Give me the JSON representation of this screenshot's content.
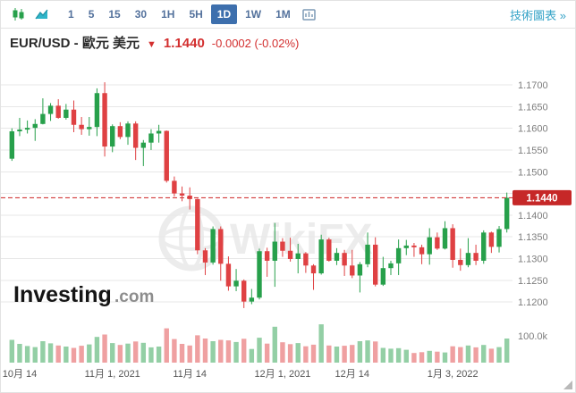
{
  "toolbar": {
    "timeframes": [
      "1",
      "5",
      "15",
      "30",
      "1H",
      "5H",
      "1D",
      "1W",
      "1M"
    ],
    "selected_timeframe": "1D",
    "tech_chart_link": "技術圖表 »",
    "icons": [
      "candlestick-chart-icon",
      "area-chart-icon",
      "indicators-icon"
    ]
  },
  "header": {
    "symbol_title": "EUR/USD - 歐元 美元",
    "direction_arrow": "▼",
    "price": "1.1440",
    "change": "-0.0002 (-0.02%)"
  },
  "watermark": {
    "text": "WikiFX"
  },
  "logo": {
    "brand": "Investing",
    "suffix": ".com"
  },
  "chart_data": {
    "type": "candlestick",
    "symbol": "EUR/USD",
    "interval": "1D",
    "title": "EUR/USD - 歐元 美元",
    "ylim": [
      1.1155,
      1.1735
    ],
    "grid": true,
    "legend": "none",
    "y_axis_ticks": [
      "1.1700",
      "1.1650",
      "1.1600",
      "1.1550",
      "1.1500",
      "1.1450",
      "1.1400",
      "1.1350",
      "1.1300",
      "1.1250",
      "1.1200"
    ],
    "price_line": {
      "value": 1.144,
      "label": "1.1440"
    },
    "volume_axis": {
      "label": "100.0k",
      "value": 100
    },
    "x_axis_labels": [
      {
        "text": "10月 14",
        "index": 1
      },
      {
        "text": "11月 1, 2021",
        "index": 13
      },
      {
        "text": "11月 14",
        "index": 23
      },
      {
        "text": "12月 1, 2021",
        "index": 35
      },
      {
        "text": "12月 14",
        "index": 44
      },
      {
        "text": "1月 3, 2022",
        "index": 57
      }
    ],
    "columns": [
      "open",
      "high",
      "low",
      "close",
      "volume_k"
    ],
    "candles": [
      [
        1.153,
        1.16,
        1.1525,
        1.1593,
        85
      ],
      [
        1.1593,
        1.1624,
        1.1582,
        1.1597,
        70
      ],
      [
        1.1597,
        1.1618,
        1.1588,
        1.1601,
        62
      ],
      [
        1.1601,
        1.1621,
        1.1571,
        1.161,
        58
      ],
      [
        1.161,
        1.1669,
        1.1609,
        1.1633,
        80
      ],
      [
        1.1633,
        1.1658,
        1.1617,
        1.1652,
        72
      ],
      [
        1.1652,
        1.1667,
        1.1622,
        1.1624,
        64
      ],
      [
        1.1624,
        1.1656,
        1.162,
        1.1643,
        60
      ],
      [
        1.1643,
        1.1664,
        1.1591,
        1.1608,
        55
      ],
      [
        1.1608,
        1.1626,
        1.1585,
        1.1598,
        63
      ],
      [
        1.1598,
        1.1626,
        1.1583,
        1.1603,
        68
      ],
      [
        1.1603,
        1.1692,
        1.1582,
        1.1681,
        96
      ],
      [
        1.1681,
        1.1706,
        1.1535,
        1.1558,
        105
      ],
      [
        1.1558,
        1.1609,
        1.1545,
        1.1605,
        73
      ],
      [
        1.1605,
        1.1614,
        1.1575,
        1.158,
        66
      ],
      [
        1.158,
        1.1616,
        1.1562,
        1.1611,
        71
      ],
      [
        1.1611,
        1.1616,
        1.1527,
        1.1555,
        79
      ],
      [
        1.1555,
        1.1573,
        1.1513,
        1.1567,
        74
      ],
      [
        1.1567,
        1.1598,
        1.155,
        1.1588,
        57
      ],
      [
        1.1588,
        1.1608,
        1.1567,
        1.1594,
        60
      ],
      [
        1.1594,
        1.1595,
        1.1475,
        1.1479,
        128
      ],
      [
        1.1479,
        1.1489,
        1.1443,
        1.145,
        88
      ],
      [
        1.145,
        1.1466,
        1.1432,
        1.1445,
        70
      ],
      [
        1.1445,
        1.1464,
        1.1413,
        1.1437,
        64
      ],
      [
        1.1437,
        1.1438,
        1.131,
        1.1319,
        102
      ],
      [
        1.1319,
        1.1324,
        1.1262,
        1.1291,
        90
      ],
      [
        1.1291,
        1.1374,
        1.1286,
        1.1368,
        80
      ],
      [
        1.1368,
        1.1374,
        1.1249,
        1.1288,
        85
      ],
      [
        1.1288,
        1.1305,
        1.1226,
        1.1236,
        83
      ],
      [
        1.1236,
        1.1276,
        1.1225,
        1.1249,
        77
      ],
      [
        1.1249,
        1.1252,
        1.1186,
        1.1201,
        89
      ],
      [
        1.1201,
        1.123,
        1.1195,
        1.121,
        51
      ],
      [
        1.121,
        1.1323,
        1.1206,
        1.1317,
        93
      ],
      [
        1.1317,
        1.1325,
        1.1258,
        1.1295,
        71
      ],
      [
        1.1295,
        1.1382,
        1.1235,
        1.1339,
        134
      ],
      [
        1.1339,
        1.1347,
        1.1304,
        1.1318,
        76
      ],
      [
        1.1318,
        1.1348,
        1.1293,
        1.1299,
        69
      ],
      [
        1.1299,
        1.1334,
        1.1266,
        1.1312,
        73
      ],
      [
        1.1312,
        1.1315,
        1.1267,
        1.1284,
        61
      ],
      [
        1.1284,
        1.1287,
        1.1228,
        1.1266,
        67
      ],
      [
        1.1266,
        1.1355,
        1.1263,
        1.1344,
        143
      ],
      [
        1.1344,
        1.1348,
        1.1293,
        1.1295,
        64
      ],
      [
        1.1295,
        1.1324,
        1.1285,
        1.1313,
        60
      ],
      [
        1.1313,
        1.132,
        1.126,
        1.1284,
        63
      ],
      [
        1.1284,
        1.132,
        1.1255,
        1.1261,
        66
      ],
      [
        1.1261,
        1.1292,
        1.1222,
        1.1287,
        80
      ],
      [
        1.1287,
        1.136,
        1.128,
        1.1332,
        83
      ],
      [
        1.1332,
        1.1349,
        1.1236,
        1.124,
        79
      ],
      [
        1.124,
        1.1304,
        1.1237,
        1.1278,
        55
      ],
      [
        1.1278,
        1.1295,
        1.1262,
        1.1289,
        52
      ],
      [
        1.1289,
        1.1344,
        1.1262,
        1.1324,
        54
      ],
      [
        1.1324,
        1.1343,
        1.1308,
        1.133,
        48
      ],
      [
        1.133,
        1.1336,
        1.1304,
        1.1326,
        36
      ],
      [
        1.1326,
        1.1332,
        1.1287,
        1.131,
        39
      ],
      [
        1.131,
        1.137,
        1.1286,
        1.1349,
        44
      ],
      [
        1.1349,
        1.136,
        1.132,
        1.1323,
        41
      ],
      [
        1.1323,
        1.1386,
        1.1321,
        1.137,
        38
      ],
      [
        1.137,
        1.1379,
        1.1279,
        1.1297,
        61
      ],
      [
        1.1297,
        1.1323,
        1.1272,
        1.1285,
        58
      ],
      [
        1.1285,
        1.1347,
        1.128,
        1.1313,
        64
      ],
      [
        1.1313,
        1.1332,
        1.1285,
        1.1295,
        57
      ],
      [
        1.1295,
        1.1365,
        1.1288,
        1.136,
        66
      ],
      [
        1.136,
        1.1362,
        1.1313,
        1.1327,
        52
      ],
      [
        1.1327,
        1.1375,
        1.1314,
        1.1368,
        58
      ],
      [
        1.1368,
        1.1452,
        1.136,
        1.144,
        90
      ]
    ],
    "colors": {
      "up": "#27a04b",
      "down": "#df4143",
      "grid": "#e7e7e7",
      "axis_text": "#7d7d7d",
      "x_axis_text": "#555555",
      "price_line": "#d13b3b",
      "price_tag_bg": "#c62828",
      "price_tag_text": "#ffffff",
      "watermark": "#ececec",
      "volume_opacity": 0.5
    }
  }
}
